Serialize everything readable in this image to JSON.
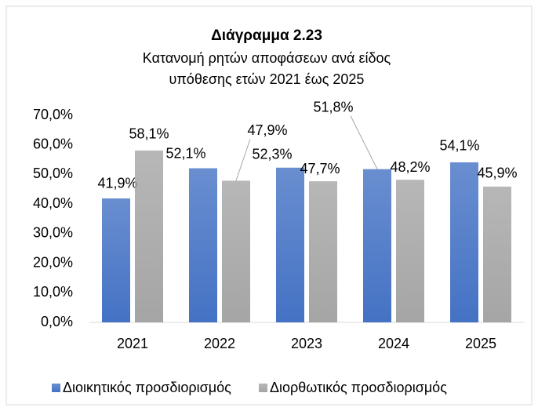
{
  "chart_data": {
    "type": "bar",
    "title": "Διάγραμμα 2.23",
    "subtitle": [
      "Κατανομή ρητών αποφάσεων ανά είδος",
      "υπόθεσης ετών 2021 έως 2025"
    ],
    "categories": [
      "2021",
      "2022",
      "2023",
      "2024",
      "2025"
    ],
    "series": [
      {
        "name": "Διοικητικός προσδιορισμός",
        "color": "#4472c4",
        "values": [
          41.9,
          52.1,
          52.3,
          51.8,
          54.1
        ],
        "value_labels": [
          "41,9%",
          "52,1%",
          "52,3%",
          "51,8%",
          "54,1%"
        ]
      },
      {
        "name": "Διορθωτικός προσδιορισμός",
        "color": "#a5a5a5",
        "values": [
          58.1,
          47.9,
          47.7,
          48.2,
          45.9
        ],
        "value_labels": [
          "58,1%",
          "47,9%",
          "47,7%",
          "48,2%",
          "45,9%"
        ]
      }
    ],
    "ylim": [
      0,
      70
    ],
    "yticks": [
      {
        "value": 0,
        "label": "0,0%"
      },
      {
        "value": 10,
        "label": "10,0%"
      },
      {
        "value": 20,
        "label": "20,0%"
      },
      {
        "value": 30,
        "label": "30,0%"
      },
      {
        "value": 40,
        "label": "40,0%"
      },
      {
        "value": 50,
        "label": "50,0%"
      },
      {
        "value": 60,
        "label": "60,0%"
      },
      {
        "value": 70,
        "label": "70,0%"
      }
    ],
    "grid": false,
    "legend": "bottom"
  }
}
